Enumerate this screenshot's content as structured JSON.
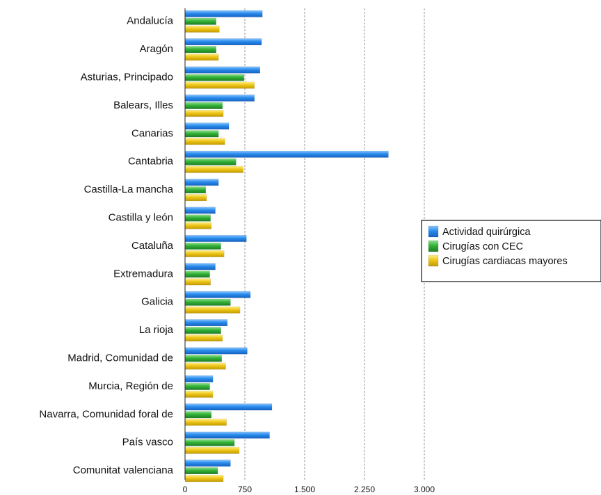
{
  "chart_data": {
    "type": "bar",
    "orientation": "horizontal",
    "categories": [
      "Andalucía",
      "Aragón",
      "Asturias, Principado",
      "Balears, Illes",
      "Canarias",
      "Cantabria",
      "Castilla-La mancha",
      "Castilla y león",
      "Cataluña",
      "Extremadura",
      "Galicia",
      "La rioja",
      "Madrid, Comunidad de",
      "Murcia, Región de",
      "Navarra, Comunidad foral de",
      "País vasco",
      "Comunitat valenciana"
    ],
    "series": [
      {
        "name": "Actividad quirúrgica",
        "color": "#1f7fe0",
        "values": [
          970,
          960,
          940,
          870,
          550,
          2550,
          420,
          380,
          770,
          380,
          820,
          530,
          780,
          350,
          1090,
          1060,
          570
        ]
      },
      {
        "name": "Cirugías con CEC",
        "color": "#2fa833",
        "values": [
          390,
          390,
          740,
          470,
          420,
          640,
          260,
          320,
          450,
          310,
          570,
          450,
          460,
          310,
          330,
          620,
          410
        ]
      },
      {
        "name": "Cirugías cardiacas mayores",
        "color": "#e2bf0a",
        "values": [
          430,
          420,
          870,
          480,
          500,
          730,
          270,
          330,
          490,
          320,
          690,
          470,
          510,
          350,
          520,
          680,
          480
        ]
      }
    ],
    "xlim": [
      0,
      3000
    ],
    "xticks": [
      0,
      750,
      1500,
      2250,
      3000
    ],
    "xtick_labels": [
      "0",
      "750",
      "1.500",
      "2.250",
      "3.000"
    ],
    "grid": "vertical-dashed",
    "legend_position": "right"
  }
}
